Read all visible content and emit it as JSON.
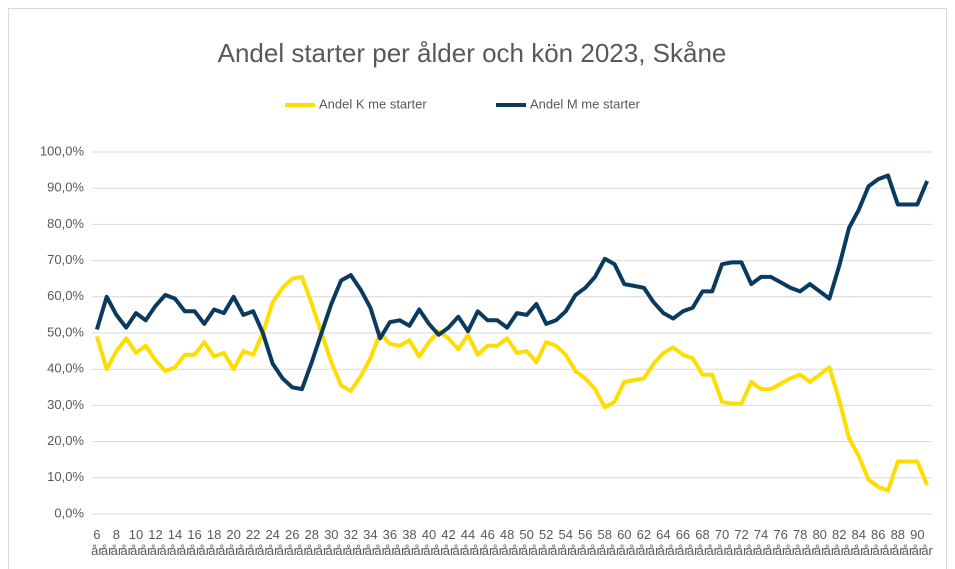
{
  "chart_data": {
    "type": "line",
    "title": "Andel starter per ålder och kön 2023, Skåne",
    "categories": [
      "6 år",
      "år",
      "8 år",
      "år",
      "10 år",
      "år",
      "12 år",
      "år",
      "14 år",
      "år",
      "16 år",
      "år",
      "18 år",
      "år",
      "20 år",
      "år",
      "22 år",
      "år",
      "24 år",
      "år",
      "26 år",
      "år",
      "28 år",
      "år",
      "30 år",
      "år",
      "32 år",
      "år",
      "34 år",
      "år",
      "36 år",
      "år",
      "38 år",
      "år",
      "40 år",
      "år",
      "42 år",
      "år",
      "44 år",
      "år",
      "46 år",
      "år",
      "48 år",
      "år",
      "50 år",
      "år",
      "52 år",
      "år",
      "54 år",
      "år",
      "56 år",
      "år",
      "58 år",
      "år",
      "60 år",
      "år",
      "62 år",
      "år",
      "64 år",
      "år",
      "66 år",
      "år",
      "68 år",
      "år",
      "70 år",
      "år",
      "72 år",
      "år",
      "74 år",
      "år",
      "76 år",
      "år",
      "78 år",
      "år",
      "80 år",
      "år",
      "82 år",
      "år",
      "84 år",
      "år",
      "86 år",
      "år",
      "88 år",
      "år",
      "90 år",
      "år"
    ],
    "series": [
      {
        "name": "Andel K me starter",
        "color": "#ffdd00",
        "values": [
          49,
          40,
          45,
          48.5,
          44.5,
          46.5,
          42.5,
          39.5,
          40.5,
          44,
          44,
          47.5,
          43.5,
          44.5,
          40,
          45,
          44,
          50,
          58.5,
          62.5,
          65,
          65.5,
          58,
          50,
          42,
          35.5,
          34,
          38,
          43,
          50,
          47,
          46.5,
          48,
          43.5,
          47.5,
          50.5,
          48.5,
          45.5,
          49.5,
          44,
          46.5,
          46.5,
          48.5,
          44.5,
          45,
          42,
          47.5,
          46.5,
          44,
          39.5,
          37.5,
          34.5,
          29.5,
          31,
          36.5,
          37,
          37.5,
          41.5,
          44.5,
          46,
          44,
          43,
          38.5,
          38.5,
          31,
          30.5,
          30.5,
          36.5,
          34.5,
          34.5,
          36,
          37.5,
          38.5,
          36.5,
          38.5,
          40.5,
          31.5,
          21,
          16,
          9.5,
          7.5,
          6.5,
          14.5,
          14.5,
          14.5,
          8
        ]
      },
      {
        "name": "Andel M me starter",
        "color": "#0b3a5f",
        "values": [
          51,
          60,
          55,
          51.5,
          55.5,
          53.5,
          57.5,
          60.5,
          59.5,
          56,
          56,
          52.5,
          56.5,
          55.5,
          60,
          55,
          56,
          50,
          41.5,
          37.5,
          35,
          34.5,
          42,
          50,
          58,
          64.5,
          66,
          62,
          57,
          48.5,
          53,
          53.5,
          52,
          56.5,
          52.5,
          49.5,
          51.5,
          54.5,
          50.5,
          56,
          53.5,
          53.5,
          51.5,
          55.5,
          55,
          58,
          52.5,
          53.5,
          56,
          60.5,
          62.5,
          65.5,
          70.5,
          69,
          63.5,
          63,
          62.5,
          58.5,
          55.5,
          54,
          56,
          57,
          61.5,
          61.5,
          69,
          69.5,
          69.5,
          63.5,
          65.5,
          65.5,
          64,
          62.5,
          61.5,
          63.5,
          61.5,
          59.5,
          68.5,
          79,
          84,
          90.5,
          92.5,
          93.5,
          85.5,
          85.5,
          85.5,
          92
        ]
      }
    ],
    "ylim": [
      0,
      100
    ],
    "yticks": [
      {
        "value": 0,
        "label": "0,0%"
      },
      {
        "value": 10,
        "label": "10,0%"
      },
      {
        "value": 20,
        "label": "20,0%"
      },
      {
        "value": 30,
        "label": "30,0%"
      },
      {
        "value": 40,
        "label": "40,0%"
      },
      {
        "value": 50,
        "label": "50,0%"
      },
      {
        "value": 60,
        "label": "60,0%"
      },
      {
        "value": 70,
        "label": "70,0%"
      },
      {
        "value": 80,
        "label": "80,0%"
      },
      {
        "value": 90,
        "label": "90,0%"
      },
      {
        "value": 100,
        "label": "100,0%"
      }
    ],
    "grid": true,
    "legend": "top"
  }
}
